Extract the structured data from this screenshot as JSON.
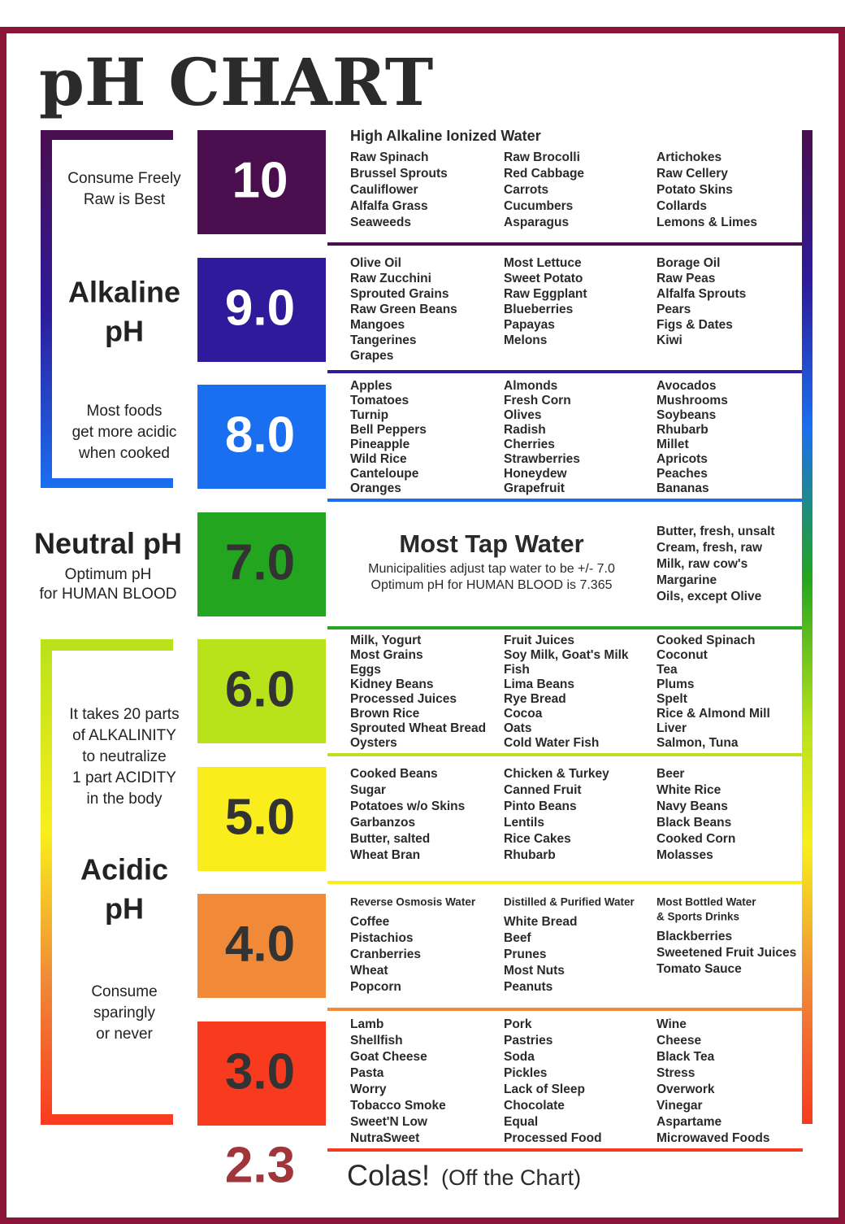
{
  "title": "pH CHART",
  "alkaline": {
    "note_top": [
      "Consume Freely",
      "Raw is Best"
    ],
    "label": [
      "Alkaline",
      "pH"
    ],
    "note_bottom": [
      "Most  foods",
      "get more acidic",
      "when cooked"
    ]
  },
  "neutral": {
    "label": "Neutral pH",
    "note": [
      "Optimum pH",
      "for HUMAN BLOOD"
    ]
  },
  "acidic": {
    "note_top": [
      "It takes 20 parts",
      "of ALKALINITY",
      "to neutralize",
      "1 part ACIDITY",
      "in the body"
    ],
    "label": [
      "Acidic",
      "pH"
    ],
    "note_bottom": [
      "Consume",
      "sparingly",
      "or never"
    ]
  },
  "levels": [
    {
      "ph": "10",
      "color": "#4a0e4e",
      "text_color": "#ffffff",
      "heading": "High Alkaline Ionized Water",
      "columns": [
        {
          "items": [
            "Raw Spinach",
            "Brussel Sprouts",
            "Cauliflower",
            "Alfalfa Grass",
            "Seaweeds"
          ]
        },
        {
          "items": [
            "Raw Brocolli",
            "Red Cabbage",
            "Carrots",
            "Cucumbers",
            "Asparagus"
          ]
        },
        {
          "items": [
            "Artichokes",
            "Raw Cellery",
            "Potato Skins",
            "Collards",
            "Lemons & Limes"
          ]
        }
      ]
    },
    {
      "ph": "9.0",
      "color": "#2e1a9a",
      "text_color": "#ffffff",
      "columns": [
        {
          "items": [
            "Olive Oil",
            "Raw Zucchini",
            "Sprouted Grains",
            "Raw Green Beans",
            "Mangoes",
            "Tangerines",
            "Grapes"
          ]
        },
        {
          "items": [
            "Most Lettuce",
            "Sweet Potato",
            "Raw Eggplant",
            "Blueberries",
            "Papayas",
            "Melons"
          ]
        },
        {
          "items": [
            "Borage Oil",
            "Raw Peas",
            "Alfalfa Sprouts",
            "Pears",
            "Figs & Dates",
            "Kiwi"
          ]
        }
      ]
    },
    {
      "ph": "8.0",
      "color": "#1a6ff0",
      "text_color": "#ffffff",
      "columns": [
        {
          "items": [
            "Apples",
            "Tomatoes",
            "Turnip",
            "Bell Peppers",
            "Pineapple",
            "Wild Rice",
            "Canteloupe",
            "Oranges"
          ]
        },
        {
          "items": [
            "Almonds",
            "Fresh Corn",
            "Olives",
            "Radish",
            "Cherries",
            "Strawberries",
            "Honeydew",
            "Grapefruit"
          ]
        },
        {
          "items": [
            "Avocados",
            "Mushrooms",
            "Soybeans",
            "Rhubarb",
            "Millet",
            "Apricots",
            "Peaches",
            "Bananas"
          ]
        }
      ]
    },
    {
      "ph": "7.0",
      "color": "#23a51f",
      "text_color": "#333333",
      "center": {
        "title": "Most Tap Water",
        "lines": [
          "Municipalities adjust tap water to be +/- 7.0",
          "Optimum pH for HUMAN BLOOD is 7.365"
        ]
      },
      "columns": [
        {
          "items": [
            "Butter, fresh, unsalt",
            "Cream, fresh, raw",
            "Milk, raw cow's",
            "Margarine",
            "Oils, except Olive"
          ]
        }
      ]
    },
    {
      "ph": "6.0",
      "color": "#b8e21a",
      "text_color": "#333333",
      "columns": [
        {
          "items": [
            "Milk, Yogurt",
            "Most Grains",
            "Eggs",
            "Kidney Beans",
            "Processed Juices",
            "Brown Rice",
            "Sprouted Wheat Bread",
            "Oysters"
          ]
        },
        {
          "items": [
            "Fruit Juices",
            "Soy Milk, Goat's Milk",
            "Fish",
            "Lima Beans",
            "Rye Bread",
            "Cocoa",
            "Oats",
            "Cold Water Fish"
          ]
        },
        {
          "items": [
            "Cooked Spinach",
            "Coconut",
            "Tea",
            "Plums",
            "Spelt",
            "Rice & Almond Mill",
            "Liver",
            "Salmon, Tuna"
          ]
        }
      ]
    },
    {
      "ph": "5.0",
      "color": "#f9ee1c",
      "text_color": "#333333",
      "columns": [
        {
          "items": [
            "Cooked Beans",
            "Sugar",
            "Potatoes w/o Skins",
            "Garbanzos",
            "Butter, salted",
            "Wheat Bran"
          ]
        },
        {
          "items": [
            "Chicken & Turkey",
            "Canned Fruit",
            "Pinto Beans",
            "Lentils",
            "Rice Cakes",
            "Rhubarb"
          ]
        },
        {
          "items": [
            "Beer",
            "White Rice",
            "Navy Beans",
            "Black Beans",
            "Cooked Corn",
            "Molasses"
          ]
        }
      ]
    },
    {
      "ph": "4.0",
      "color": "#f08a38",
      "text_color": "#333333",
      "columns": [
        {
          "heading": [
            "Reverse Osmosis Water"
          ],
          "items": [
            "Coffee",
            "Pistachios",
            "Cranberries",
            "Wheat",
            "Popcorn"
          ]
        },
        {
          "heading": [
            "Distilled & Purified Water"
          ],
          "items": [
            "White Bread",
            "Beef",
            "Prunes",
            "Most Nuts",
            "Peanuts"
          ]
        },
        {
          "heading": [
            "Most Bottled Water",
            "& Sports Drinks"
          ],
          "items": [
            "Blackberries",
            "Sweetened Fruit Juices",
            "Tomato Sauce"
          ]
        }
      ]
    },
    {
      "ph": "3.0",
      "color": "#f83a1f",
      "text_color": "#333333",
      "columns": [
        {
          "items": [
            "Lamb",
            "Shellfish",
            "Goat Cheese",
            "Pasta",
            "Worry",
            "Tobacco Smoke",
            "Sweet'N Low",
            "NutraSweet"
          ]
        },
        {
          "items": [
            "Pork",
            "Pastries",
            "Soda",
            "Pickles",
            "Lack of Sleep",
            "Chocolate",
            "Equal",
            "Processed Food"
          ]
        },
        {
          "items": [
            "Wine",
            "Cheese",
            "Black Tea",
            "Stress",
            "Overwork",
            "Vinegar",
            "Aspartame",
            "Microwaved Foods"
          ]
        }
      ]
    }
  ],
  "footer": {
    "ph": "2.3",
    "ph_color": "#a0353a",
    "label": "Colas!",
    "note": "(Off the Chart)"
  }
}
